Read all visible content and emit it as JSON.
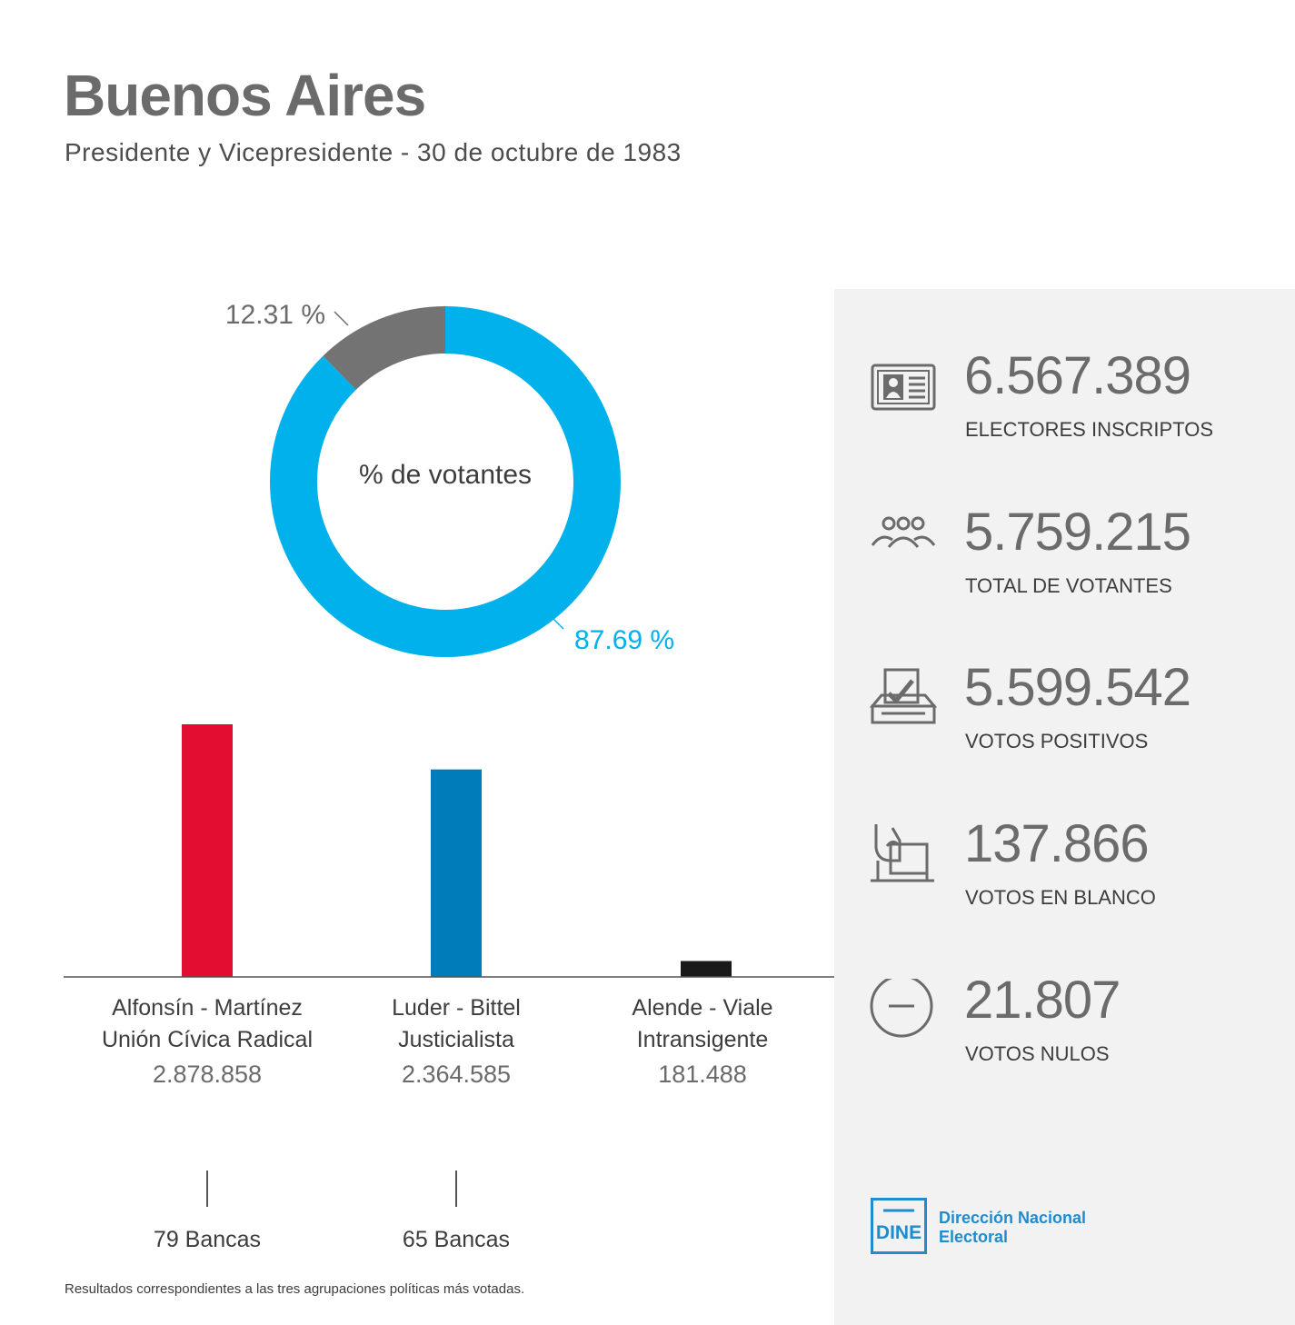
{
  "header": {
    "title": "Buenos Aires",
    "subtitle": "Presidente y Vicepresidente - 30 de octubre de 1983"
  },
  "chart_data": [
    {
      "type": "pie",
      "title": "% de votantes",
      "slices": [
        {
          "label": "87.69 %",
          "value": 87.69,
          "color": "#00b1eb"
        },
        {
          "label": "12.31 %",
          "value": 12.31,
          "color": "#737373"
        }
      ]
    },
    {
      "type": "bar",
      "categories": [
        "Alfonsín - Martínez",
        "Luder - Bittel",
        "Alende - Viale"
      ],
      "parties": [
        "Unión Cívica Radical",
        "Justicialista",
        "Intransigente"
      ],
      "values": [
        2878858,
        2364585,
        181488
      ],
      "value_labels": [
        "2.878.858",
        "2.364.585",
        "181.488"
      ],
      "seats": [
        "79 Bancas",
        "65 Bancas",
        ""
      ],
      "colors": [
        "#e20e31",
        "#007cbb",
        "#1a1a1a"
      ],
      "ylim": [
        0,
        2878858
      ]
    }
  ],
  "stats": [
    {
      "icon": "id-card-icon",
      "value": "6.567.389",
      "label": "ELECTORES INSCRIPTOS"
    },
    {
      "icon": "people-icon",
      "value": "5.759.215",
      "label": "TOTAL DE VOTANTES"
    },
    {
      "icon": "ballot-box-check-icon",
      "value": "5.599.542",
      "label": "VOTOS POSITIVOS"
    },
    {
      "icon": "hand-ballot-icon",
      "value": "137.866",
      "label": "VOTOS EN BLANCO"
    },
    {
      "icon": "minus-circle-icon",
      "value": "21.807",
      "label": "VOTOS NULOS"
    }
  ],
  "footnote": "Resultados correspondientes a las tres agrupaciones políticas más votadas.",
  "logo": {
    "mark": "DINE",
    "line1": "Dirección Nacional",
    "line2": "Electoral"
  },
  "colors": {
    "accent": "#00b1eb",
    "dine_blue": "#1e8ccf",
    "panel_bg": "#f3f2f2"
  }
}
